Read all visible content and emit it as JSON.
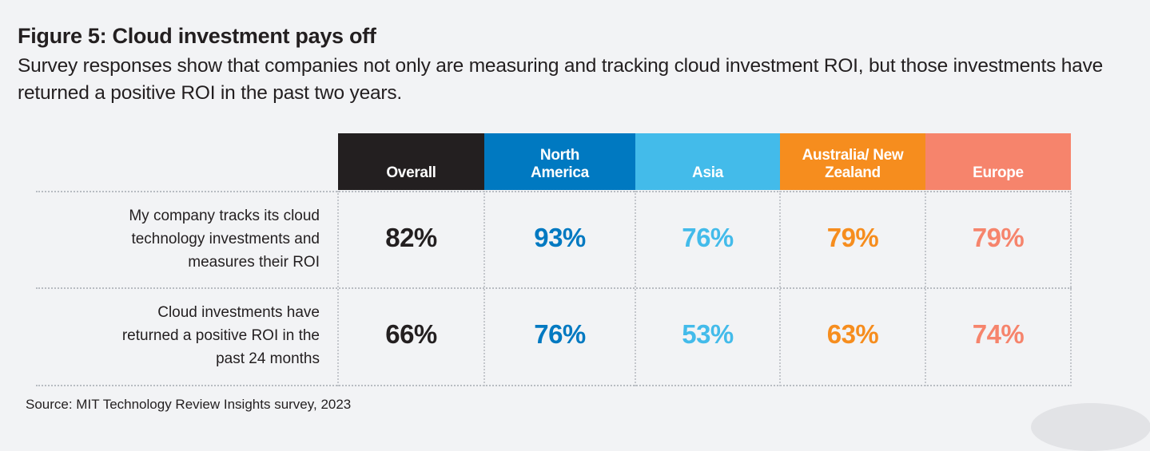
{
  "title": "Figure 5: Cloud investment pays off",
  "subtitle": "Survey responses show that companies not only are measuring and tracking cloud investment ROI, but those investments have returned a positive ROI in the past two years.",
  "source": "Source: MIT Technology Review Insights survey, 2023",
  "chart_data": {
    "type": "table",
    "columns": [
      {
        "label": "Overall",
        "color": "#231f20",
        "text_color": "#231f20"
      },
      {
        "label": "North America",
        "color": "#0079c1",
        "text_color": "#0079c1"
      },
      {
        "label": "Asia",
        "color": "#43bbea",
        "text_color": "#43bbea"
      },
      {
        "label": "Australia/ New Zealand",
        "color": "#f68d1e",
        "text_color": "#f68d1e"
      },
      {
        "label": "Europe",
        "color": "#f6846c",
        "text_color": "#f6846c"
      }
    ],
    "rows": [
      {
        "label": "My company tracks its cloud technology investments and measures their ROI",
        "values": [
          "82%",
          "93%",
          "76%",
          "79%",
          "79%"
        ]
      },
      {
        "label": "Cloud investments have returned a positive ROI in the past 24 months",
        "values": [
          "66%",
          "76%",
          "53%",
          "63%",
          "74%"
        ]
      }
    ]
  }
}
